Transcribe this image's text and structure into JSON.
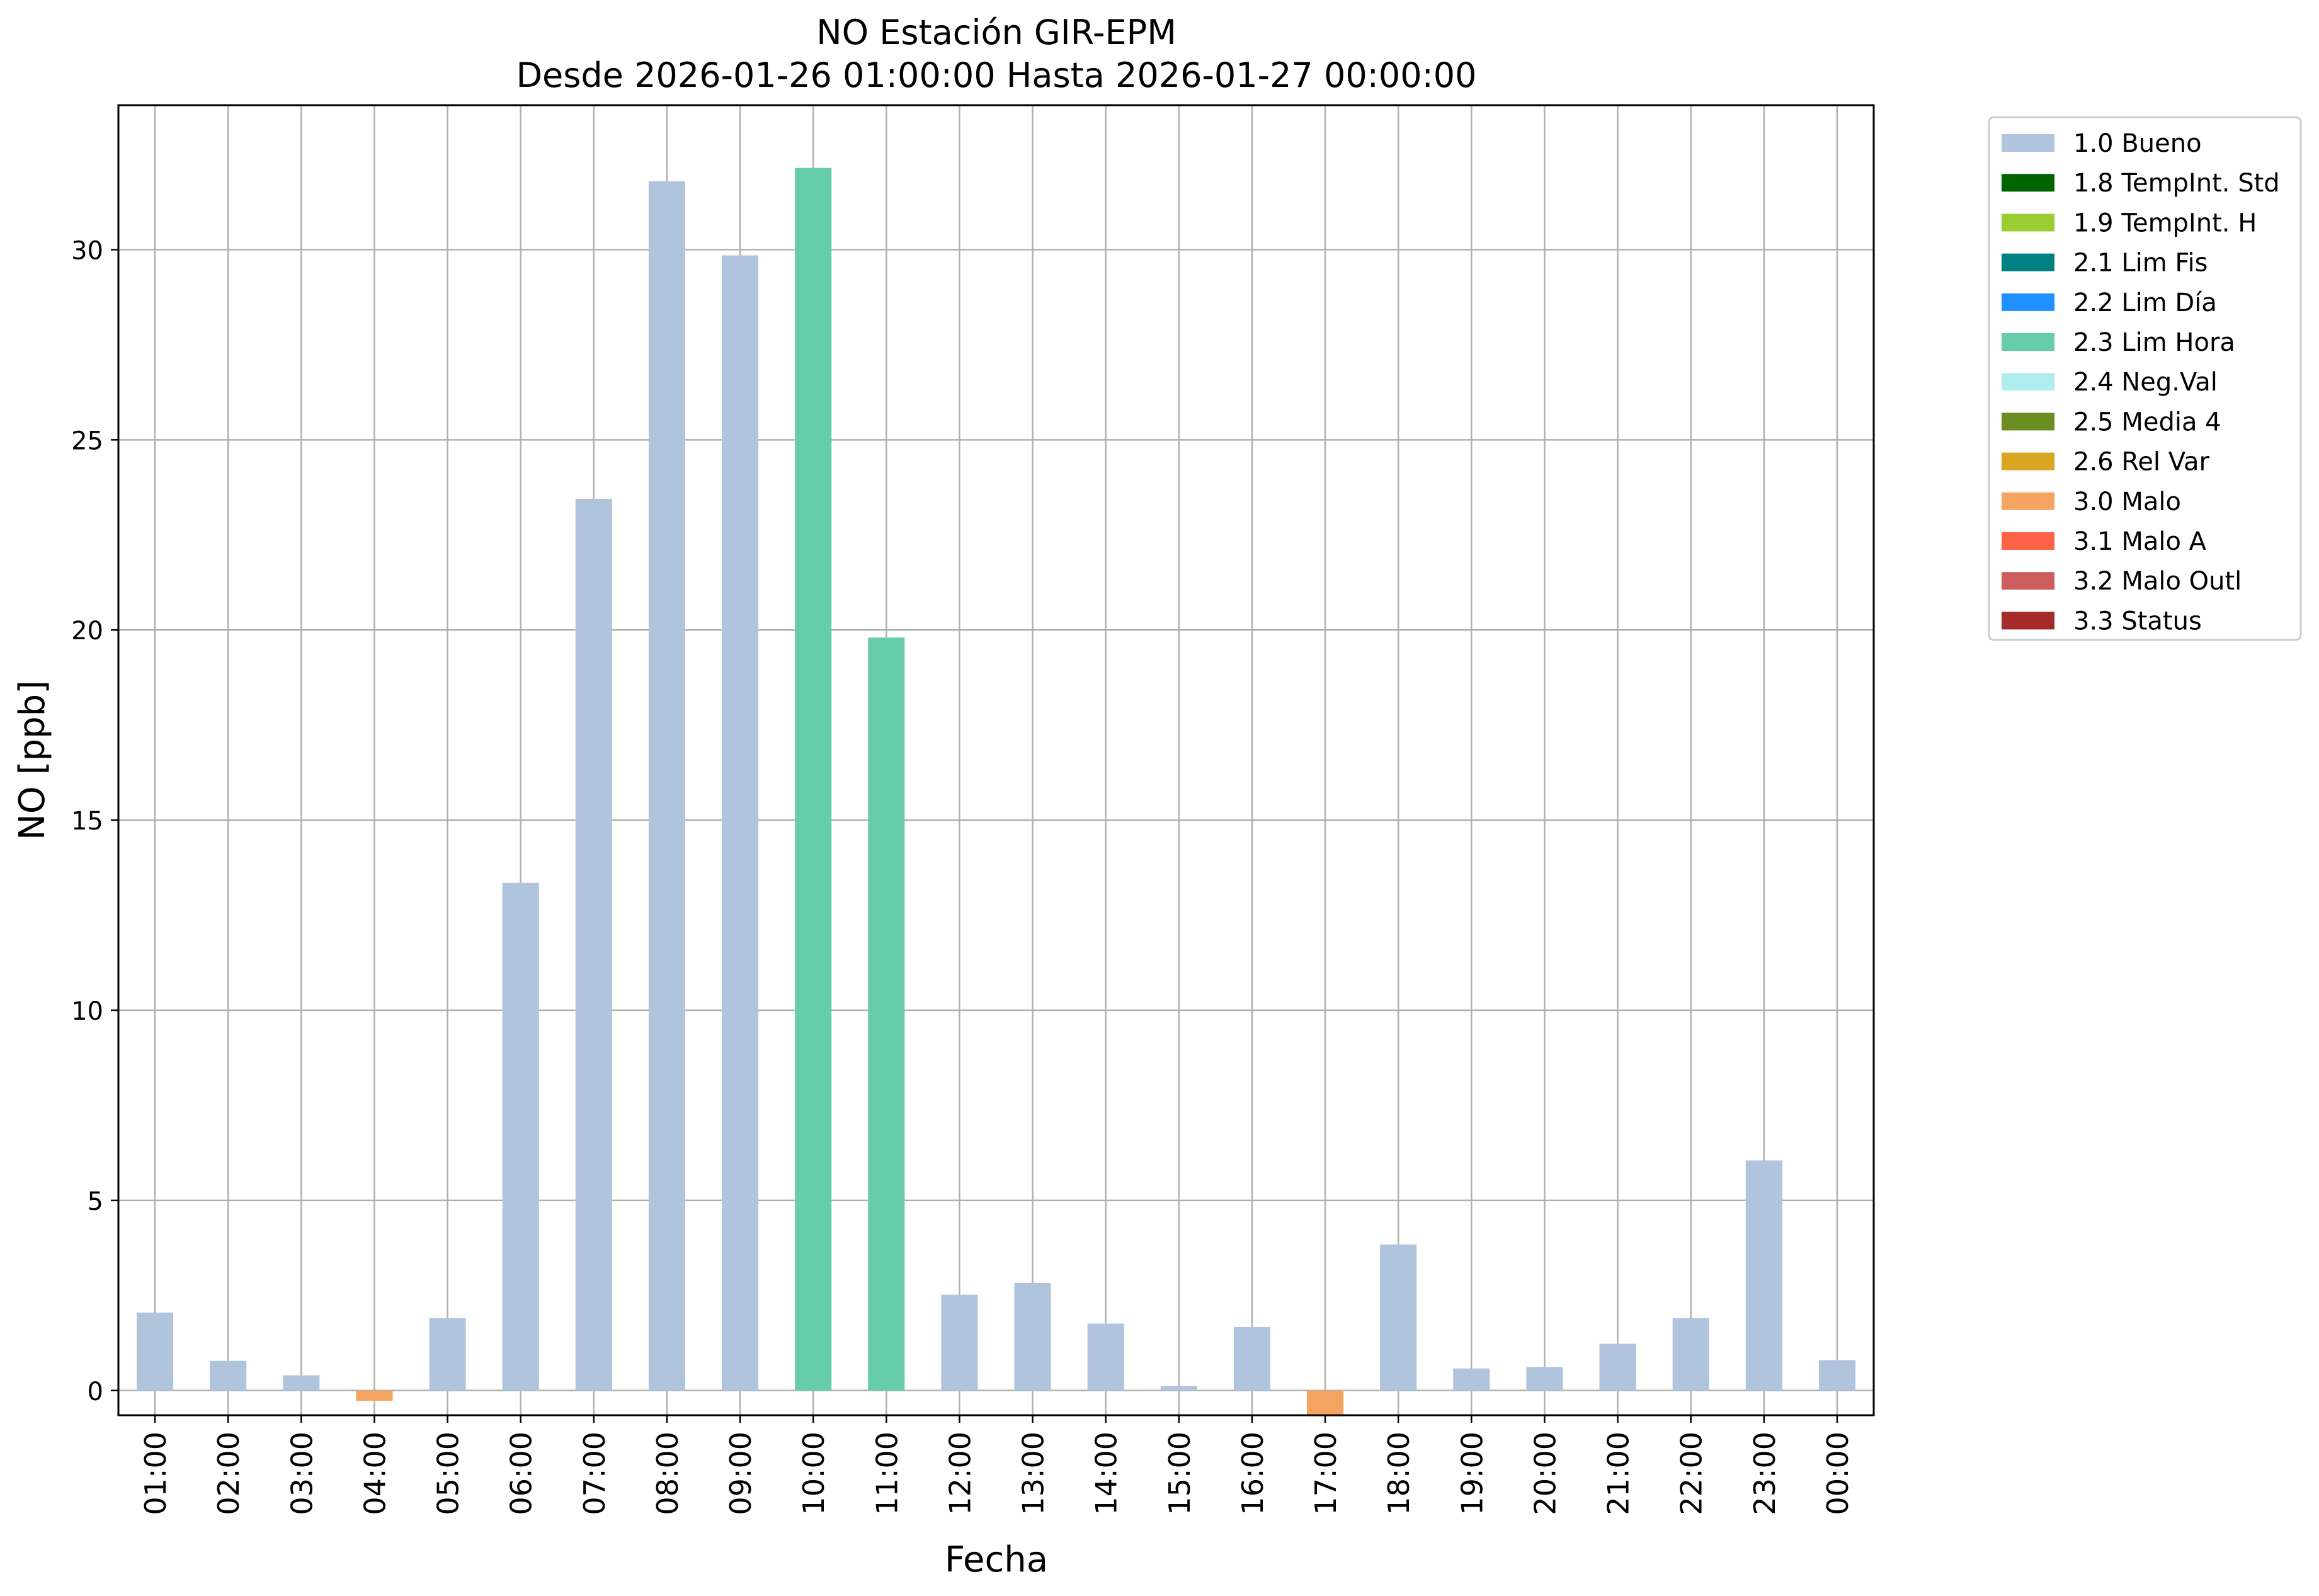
{
  "chart_data": {
    "type": "bar",
    "title_line1": "NO Estación GIR-EPM",
    "title_line2": "Desde 2026-01-26 01:00:00 Hasta 2026-01-27 00:00:00",
    "xlabel": "Fecha",
    "ylabel": "NO [ppb]",
    "grid": true,
    "legend_position": "outside-top-right",
    "ylim": [
      -0.65,
      33.8
    ],
    "yticks": [
      0,
      5,
      10,
      15,
      20,
      25,
      30
    ],
    "categories": [
      "01:00",
      "02:00",
      "03:00",
      "04:00",
      "05:00",
      "06:00",
      "07:00",
      "08:00",
      "09:00",
      "10:00",
      "11:00",
      "12:00",
      "13:00",
      "14:00",
      "15:00",
      "16:00",
      "17:00",
      "18:00",
      "19:00",
      "20:00",
      "21:00",
      "22:00",
      "23:00",
      "00:00"
    ],
    "values": [
      2.05,
      0.78,
      0.4,
      -0.27,
      1.9,
      13.35,
      23.45,
      31.8,
      29.85,
      32.15,
      19.8,
      2.52,
      2.83,
      1.76,
      0.12,
      1.67,
      -0.68,
      3.84,
      0.58,
      0.62,
      1.23,
      1.9,
      6.05,
      0.8
    ],
    "flags": [
      "1.0 Bueno",
      "1.0 Bueno",
      "1.0 Bueno",
      "3.0 Malo",
      "1.0 Bueno",
      "1.0 Bueno",
      "1.0 Bueno",
      "1.0 Bueno",
      "1.0 Bueno",
      "2.3 Lim Hora",
      "2.3 Lim Hora",
      "1.0 Bueno",
      "1.0 Bueno",
      "1.0 Bueno",
      "1.0 Bueno",
      "1.0 Bueno",
      "3.0 Malo",
      "1.0 Bueno",
      "1.0 Bueno",
      "1.0 Bueno",
      "1.0 Bueno",
      "1.0 Bueno",
      "1.0 Bueno",
      "1.0 Bueno"
    ],
    "legend": [
      {
        "name": "1.0 Bueno",
        "color": "#b0c4de"
      },
      {
        "name": "1.8 TempInt. Std",
        "color": "#006400"
      },
      {
        "name": "1.9 TempInt. H",
        "color": "#9acd32"
      },
      {
        "name": "2.1 Lim Fis",
        "color": "#008080"
      },
      {
        "name": "2.2 Lim Día",
        "color": "#1e90ff"
      },
      {
        "name": "2.3 Lim Hora",
        "color": "#66cdaa"
      },
      {
        "name": "2.4 Neg.Val",
        "color": "#afeeee"
      },
      {
        "name": "2.5 Media 4",
        "color": "#6b8e23"
      },
      {
        "name": "2.6 Rel Var",
        "color": "#daa520"
      },
      {
        "name": "3.0 Malo",
        "color": "#f4a460"
      },
      {
        "name": "3.1 Malo A",
        "color": "#ff6347"
      },
      {
        "name": "3.2 Malo Outl",
        "color": "#cd5c5c"
      },
      {
        "name": "3.3 Status",
        "color": "#a52a2a"
      }
    ]
  }
}
